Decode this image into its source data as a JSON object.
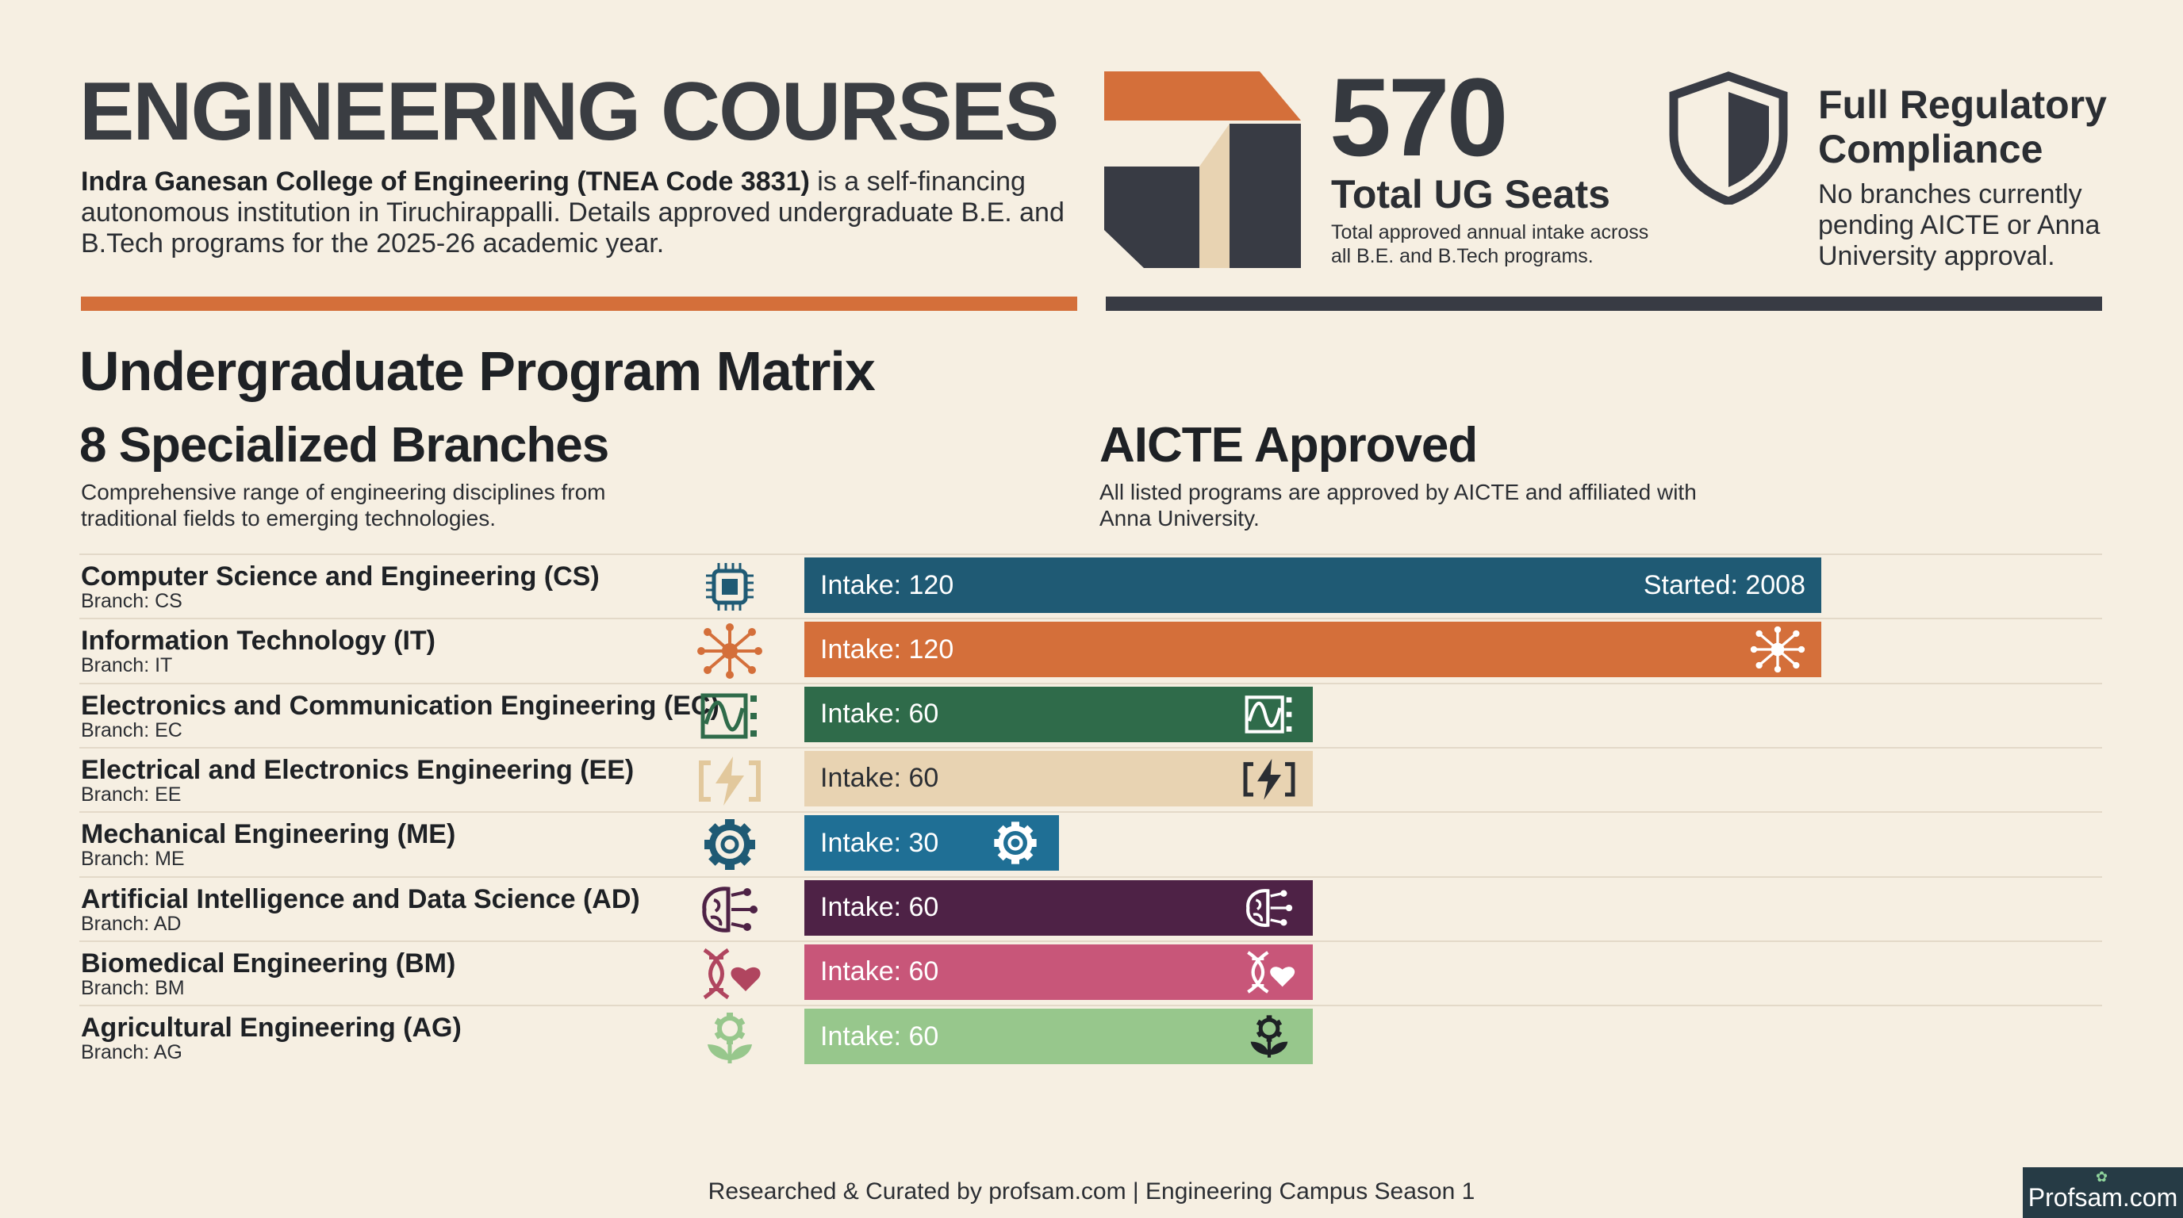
{
  "header": {
    "title": "ENGINEERING COURSES",
    "intro_bold": "Indra Ganesan College of Engineering (TNEA Code 3831)",
    "intro_text": " is a self-financing autonomous institution in Tiruchirappalli. Details approved undergraduate B.E. and B.Tech programs for the 2025-26 academic year."
  },
  "stats": {
    "total_seats": "570",
    "total_seats_label": "Total UG Seats",
    "total_seats_desc": "Total approved annual intake across all B.E. and B.Tech programs.",
    "compliance_title": "Full Regulatory Compliance",
    "compliance_desc": "No branches currently pending AICTE or Anna University approval."
  },
  "matrix": {
    "title": "Undergraduate Program Matrix",
    "branches_title": "8 Specialized Branches",
    "branches_desc": "Comprehensive range of engineering disciplines from traditional fields to emerging technologies.",
    "aicte_title": "AICTE Approved",
    "aicte_desc": "All listed programs are approved by AICTE and affiliated with Anna University."
  },
  "chart_data": {
    "type": "bar",
    "orientation": "horizontal",
    "value_label_prefix": "Intake: ",
    "categories": [
      "Computer Science and Engineering (CS)",
      "Information Technology (IT)",
      "Electronics and Communication Engineering (EC)",
      "Electrical and Electronics Engineering (EE)",
      "Mechanical Engineering (ME)",
      "Artificial Intelligence and Data Science (AD)",
      "Biomedical Engineering (BM)",
      "Agricultural Engineering (AG)"
    ],
    "values": [
      120,
      120,
      60,
      60,
      30,
      60,
      60,
      60
    ],
    "branches": [
      "Branch: CS",
      "Branch: IT",
      "Branch: EC",
      "Branch: EE",
      "Branch: ME",
      "Branch: AD",
      "Branch: BM",
      "Branch: AG"
    ],
    "annotations": [
      {
        "category": "Computer Science and Engineering (CS)",
        "text": "Started: 2008"
      }
    ],
    "colors": [
      "#1f5a74",
      "#d46f3a",
      "#2f6b4a",
      "#e8d3b2",
      "#1f6f95",
      "#4e2246",
      "#c85679",
      "#97c78c"
    ],
    "icons": [
      "chip-icon",
      "network-icon",
      "waveform-icon",
      "lightning-icon",
      "gear-icon",
      "brain-icon",
      "dna-heart-icon",
      "plant-gear-icon"
    ],
    "xlim": [
      0,
      120
    ],
    "grid": false
  },
  "footer": {
    "credit": "Researched & Curated by profsam.com | Engineering Campus Season 1",
    "brand": "Profsam.com"
  }
}
